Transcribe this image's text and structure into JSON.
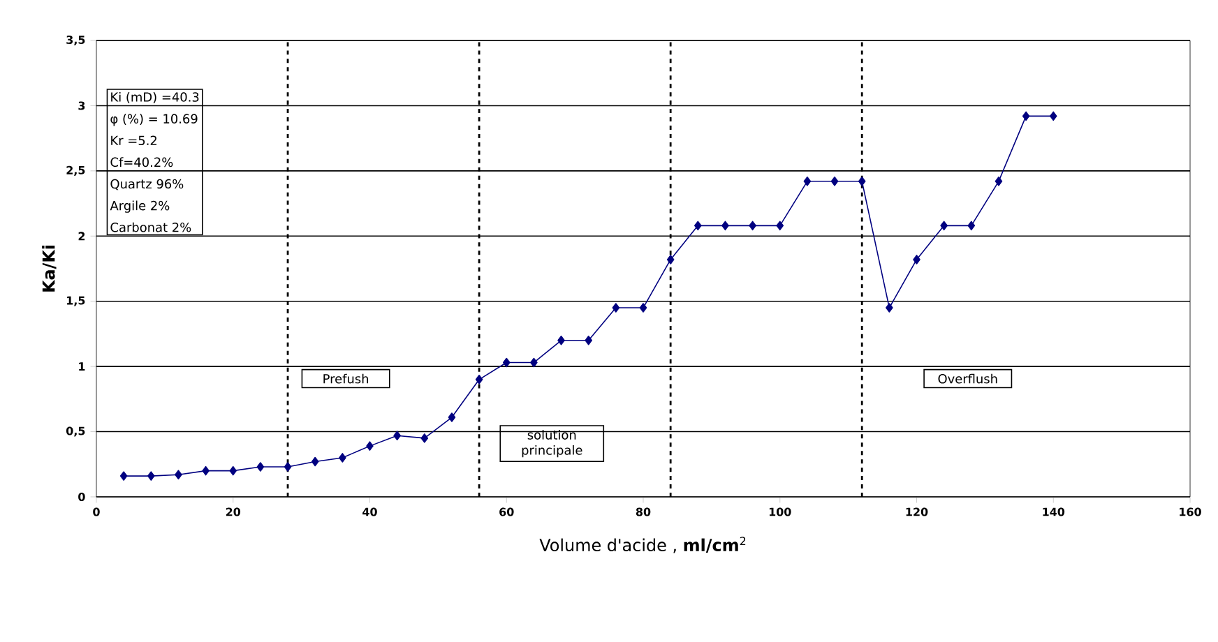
{
  "chart_data": {
    "type": "line",
    "xlabel": "Volume d'acide , **ml/cm**$^{2}$",
    "ylabel": "Ka/Ki",
    "x": [
      4,
      8,
      12,
      16,
      20,
      24,
      28,
      32,
      36,
      40,
      44,
      48,
      52,
      56,
      60,
      64,
      68,
      72,
      76,
      80,
      84,
      88,
      92,
      96,
      100,
      104,
      108,
      112,
      116,
      120,
      124,
      128,
      132,
      136,
      140
    ],
    "series": [
      {
        "color": "#000080",
        "values": [
          0.16,
          0.16,
          0.17,
          0.2,
          0.2,
          0.23,
          0.23,
          0.27,
          0.3,
          0.39,
          0.47,
          0.45,
          0.61,
          0.9,
          1.03,
          1.03,
          1.2,
          1.2,
          1.45,
          1.45,
          1.82,
          2.08,
          2.08,
          2.08,
          2.08,
          2.42,
          2.42,
          2.42,
          1.45,
          1.82,
          2.08,
          2.08,
          2.42,
          2.92,
          2.92
        ]
      }
    ],
    "xlim": [
      0,
      160
    ],
    "xticks": [
      0,
      20,
      40,
      60,
      80,
      100,
      120,
      140,
      160
    ],
    "ylim": [
      0,
      3.5
    ],
    "yticks": [
      0,
      {
        "value": 0.5,
        "label": "0,5"
      },
      1,
      {
        "value": 1.5,
        "label": "1,5"
      },
      2,
      {
        "value": 2.5,
        "label": "2,5"
      },
      3,
      {
        "value": 3.5,
        "label": "3,5"
      }
    ],
    "grid": "y",
    "marker": "diamond",
    "line_style": "solid",
    "ref_lines": [
      {
        "axis": "x",
        "value": 28,
        "color": "#000000",
        "line_style": "dashed"
      },
      {
        "axis": "x",
        "value": 56,
        "color": "#000000",
        "line_style": "dashed"
      },
      {
        "axis": "x",
        "value": 84,
        "color": "#000000",
        "line_style": "dashed"
      },
      {
        "axis": "x",
        "value": 112,
        "color": "#000000",
        "line_style": "dashed"
      }
    ],
    "annotations": [
      "Ki (mD) =40.3",
      "φ (%) =  10.69",
      "Kr =5.2",
      "Cf=40.2%",
      "Quartz   96%",
      "Argile 2%",
      "Carbonat 2%",
      "Prefush",
      "solution principale",
      "Overflush"
    ]
  }
}
